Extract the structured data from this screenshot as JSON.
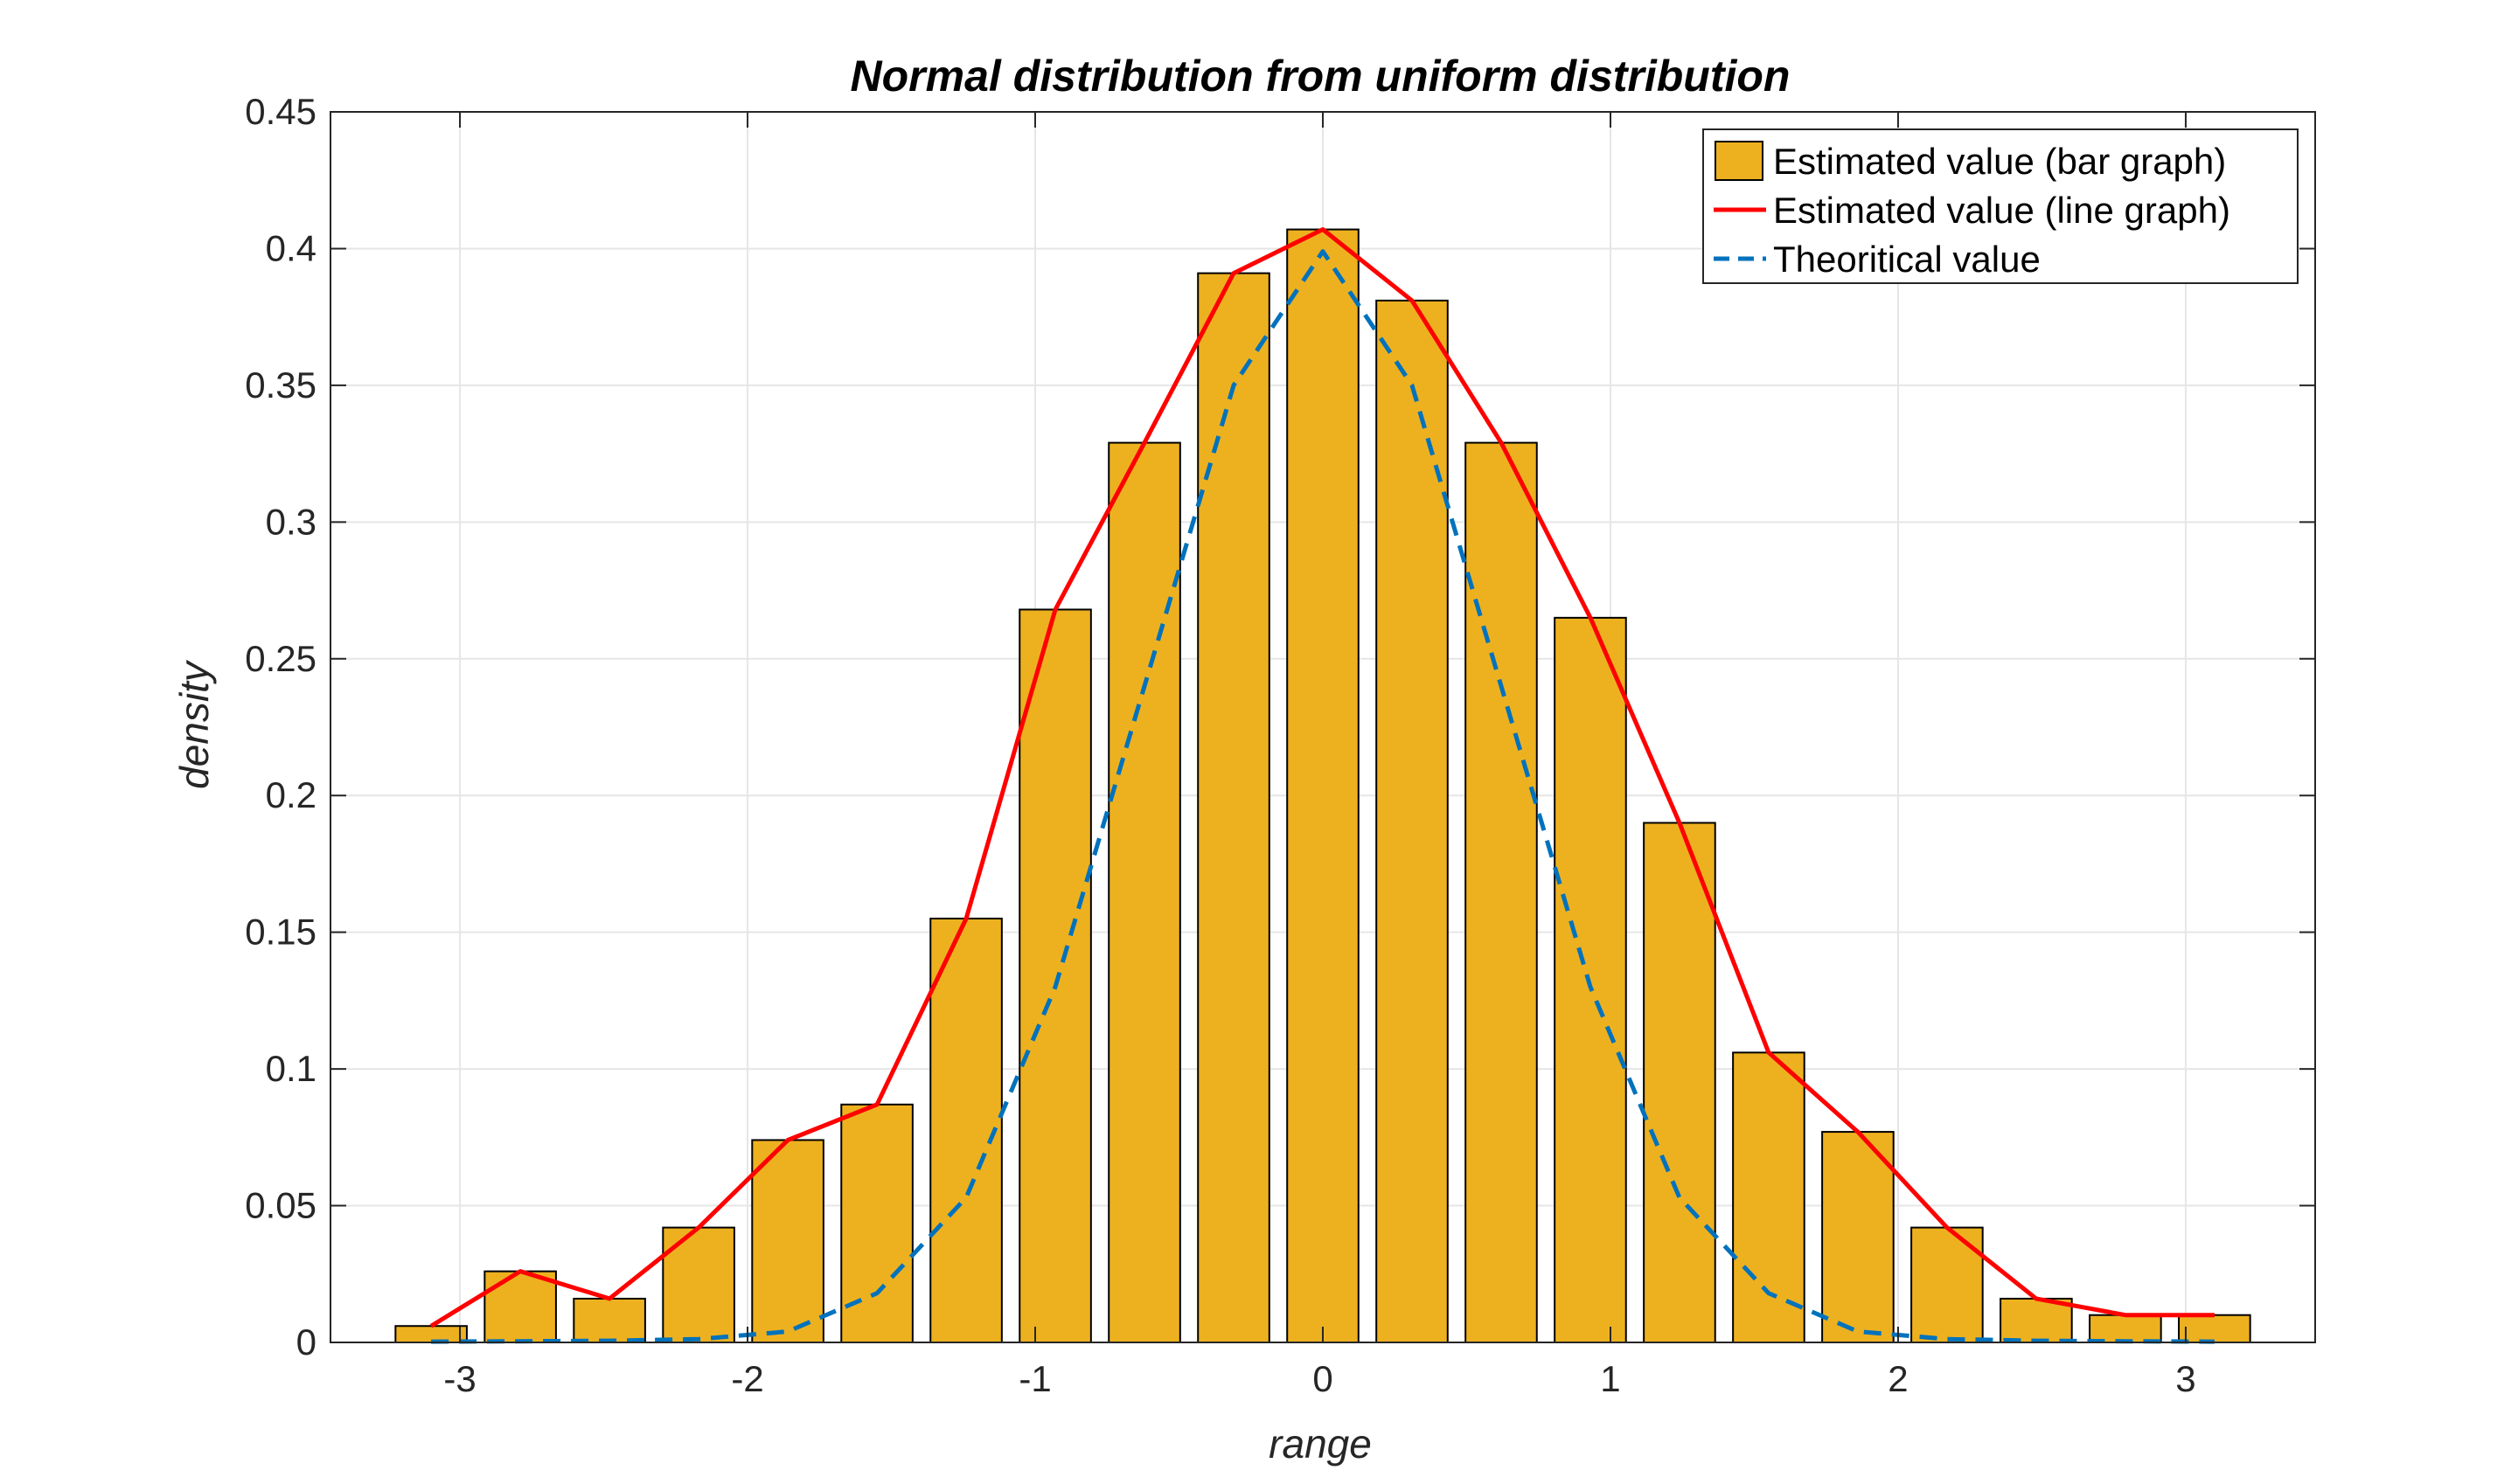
{
  "chart_data": {
    "type": "bar",
    "title": "Normal distribution from uniform distribution",
    "xlabel": "range",
    "ylabel": "density",
    "xlim": [
      -3.45,
      3.45
    ],
    "ylim": [
      0,
      0.45
    ],
    "x_ticks": [
      -3,
      -2,
      -1,
      0,
      1,
      2,
      3
    ],
    "x_tick_labels": [
      "-3",
      "-2",
      "-1",
      "0",
      "1",
      "2",
      "3"
    ],
    "y_ticks": [
      0,
      0.05,
      0.1,
      0.15,
      0.2,
      0.25,
      0.3,
      0.35,
      0.4,
      0.45
    ],
    "y_tick_labels": [
      "0",
      "0.05",
      "0.1",
      "0.15",
      "0.2",
      "0.25",
      "0.3",
      "0.35",
      "0.4",
      "0.45"
    ],
    "grid": true,
    "legend_position": "top-right",
    "x": [
      -3.1,
      -2.79,
      -2.48,
      -2.17,
      -1.86,
      -1.55,
      -1.24,
      -0.93,
      -0.62,
      -0.31,
      0.0,
      0.31,
      0.62,
      0.93,
      1.24,
      1.55,
      1.86,
      2.17,
      2.48,
      2.79,
      3.1
    ],
    "series": [
      {
        "name": "Estimated value (bar graph)",
        "kind": "bar",
        "color": "#EDB120",
        "values": [
          0.006,
          0.026,
          0.016,
          0.042,
          0.074,
          0.087,
          0.155,
          0.268,
          0.329,
          0.391,
          0.407,
          0.381,
          0.329,
          0.265,
          0.19,
          0.106,
          0.077,
          0.042,
          0.016,
          0.01,
          0.01
        ]
      },
      {
        "name": "Estimated value (line graph)",
        "kind": "line",
        "color": "#FF0000",
        "values": [
          0.006,
          0.026,
          0.016,
          0.042,
          0.074,
          0.087,
          0.155,
          0.268,
          0.329,
          0.391,
          0.407,
          0.381,
          0.329,
          0.265,
          0.19,
          0.106,
          0.077,
          0.042,
          0.016,
          0.01,
          0.01
        ]
      },
      {
        "name": "Theoritical value",
        "kind": "dashed-line",
        "color": "#0072BD",
        "values": [
          0.0003,
          0.0004,
          0.0006,
          0.0012,
          0.004,
          0.018,
          0.053,
          0.13,
          0.24,
          0.35,
          0.399,
          0.35,
          0.24,
          0.13,
          0.053,
          0.018,
          0.004,
          0.0012,
          0.0006,
          0.0004,
          0.0003
        ]
      }
    ]
  }
}
